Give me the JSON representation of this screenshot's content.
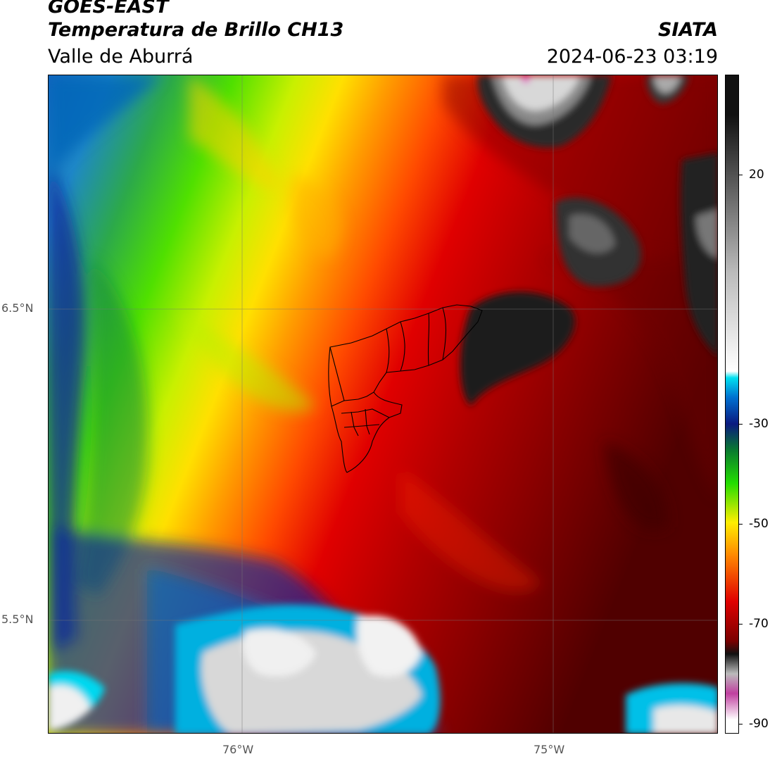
{
  "header": {
    "satellite": "GOES-EAST",
    "product": "Temperatura de Brillo CH13",
    "region": "Valle de Aburrá",
    "agency": "SIATA",
    "timestamp": "2024-06-23 03:19"
  },
  "map": {
    "lat_labels": [
      "6.5°N",
      "5.5°N"
    ],
    "lon_labels": [
      "76°W",
      "75°W"
    ]
  },
  "colorbar": {
    "labels": [
      "20",
      "-30",
      "-50",
      "-70",
      "-90"
    ],
    "colors": {
      "warm_white": "#ffffff",
      "magenta": "#c040a0",
      "gray_light": "#bbbbbb",
      "black": "#111111",
      "dark_red": "#7a0000",
      "red": "#e00000",
      "orange": "#ff8800",
      "yellow": "#ffee00",
      "green": "#22dd00",
      "dark_green": "#0a7a30",
      "navy": "#0a1a80",
      "blue": "#0070d0",
      "cyan": "#00e0f0",
      "white": "#f0f0f0"
    }
  }
}
